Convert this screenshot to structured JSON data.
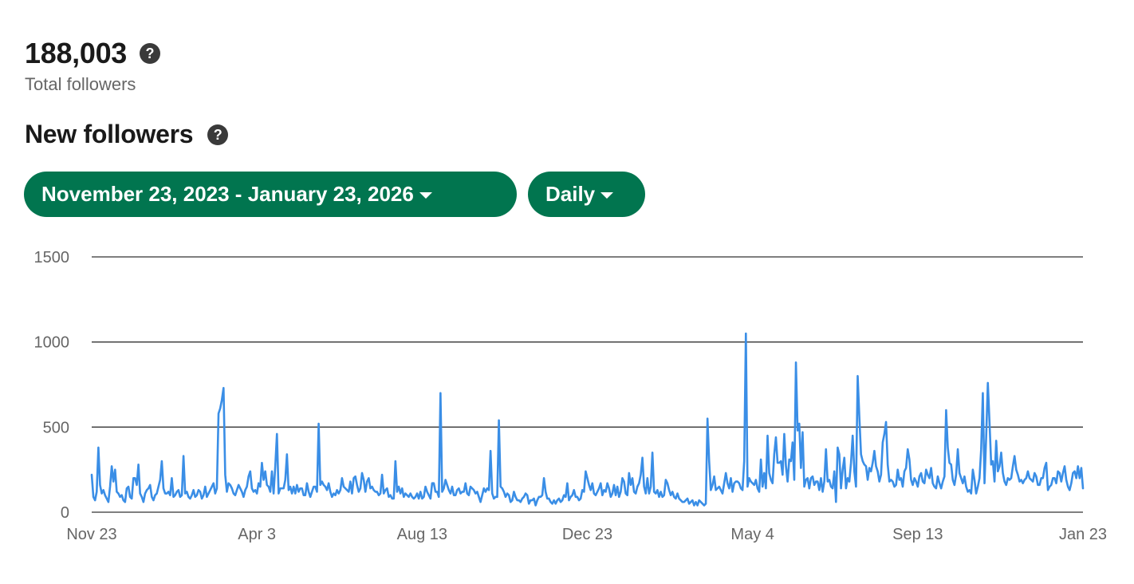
{
  "summary": {
    "total_followers_value": "188,003",
    "total_followers_label": "Total followers",
    "section_title": "New followers",
    "help_glyph": "?"
  },
  "filters": {
    "date_range_label": "November 23, 2023 - January 23, 2026",
    "interval_label": "Daily"
  },
  "icons": {
    "help": "question-circle-icon",
    "dropdown": "caret-down-icon"
  },
  "colors": {
    "pill_bg": "#01754f",
    "line": "#3a8ee6",
    "gridline": "#333333"
  },
  "chart_data": {
    "type": "line",
    "title": "",
    "xlabel": "",
    "ylabel": "",
    "x_range": [
      "2023-11-23",
      "2026-01-23"
    ],
    "xticks": [
      "Nov 23",
      "Apr 3",
      "Aug 13",
      "Dec 23",
      "May 4",
      "Sep 13",
      "Jan 23"
    ],
    "yticks": [
      0,
      500,
      1000,
      1500
    ],
    "ylim": [
      0,
      1500
    ],
    "grid": true,
    "series": [
      {
        "name": "",
        "values": [
          220,
          90,
          70,
          120,
          380,
          160,
          110,
          130,
          100,
          80,
          60,
          150,
          270,
          180,
          250,
          120,
          110,
          90,
          100,
          70,
          60,
          140,
          150,
          90,
          80,
          200,
          200,
          160,
          280,
          110,
          90,
          60,
          110,
          130,
          140,
          160,
          90,
          70,
          100,
          110,
          150,
          190,
          300,
          140,
          110,
          110,
          120,
          100,
          200,
          90,
          100,
          120,
          130,
          90,
          100,
          330,
          110,
          120,
          90,
          80,
          100,
          130,
          90,
          100,
          130,
          120,
          80,
          100,
          150,
          90,
          110,
          130,
          150,
          170,
          110,
          140,
          580,
          610,
          660,
          730,
          220,
          120,
          170,
          160,
          140,
          110,
          100,
          130,
          160,
          140,
          120,
          90,
          130,
          150,
          210,
          240,
          140,
          120,
          130,
          110,
          170,
          150,
          290,
          190,
          240,
          160,
          150,
          120,
          240,
          110,
          270,
          460,
          110,
          140,
          140,
          140,
          190,
          340,
          130,
          150,
          110,
          150,
          110,
          160,
          120,
          140,
          140,
          100,
          100,
          170,
          120,
          90,
          120,
          150,
          150,
          120,
          520,
          160,
          180,
          160,
          150,
          130,
          170,
          120,
          90,
          110,
          100,
          130,
          110,
          130,
          200,
          150,
          140,
          130,
          120,
          180,
          110,
          200,
          210,
          160,
          120,
          140,
          230,
          190,
          120,
          180,
          200,
          140,
          150,
          130,
          120,
          120,
          100,
          110,
          220,
          110,
          130,
          140,
          90,
          100,
          80,
          80,
          300,
          120,
          150,
          110,
          140,
          90,
          110,
          100,
          90,
          110,
          90,
          80,
          90,
          110,
          80,
          120,
          80,
          90,
          150,
          120,
          100,
          80,
          170,
          170,
          120,
          120,
          90,
          700,
          120,
          140,
          190,
          160,
          130,
          110,
          150,
          100,
          100,
          130,
          140,
          110,
          120,
          120,
          170,
          110,
          100,
          150,
          140,
          130,
          110,
          120,
          90,
          60,
          100,
          140,
          120,
          140,
          130,
          360,
          110,
          80,
          90,
          90,
          540,
          150,
          140,
          120,
          90,
          110,
          100,
          60,
          70,
          120,
          90,
          70,
          70,
          60,
          80,
          90,
          110,
          100,
          50,
          70,
          70,
          80,
          40,
          70,
          90,
          90,
          100,
          200,
          120,
          80,
          80,
          60,
          50,
          70,
          50,
          70,
          80,
          60,
          70,
          100,
          90,
          170,
          70,
          90,
          100,
          130,
          90,
          90,
          70,
          80,
          130,
          120,
          240,
          200,
          160,
          130,
          170,
          110,
          100,
          120,
          140,
          170,
          100,
          130,
          120,
          170,
          140,
          90,
          110,
          160,
          100,
          150,
          90,
          120,
          200,
          180,
          110,
          100,
          230,
          160,
          200,
          120,
          110,
          150,
          170,
          220,
          320,
          150,
          110,
          200,
          110,
          150,
          350,
          120,
          110,
          130,
          90,
          120,
          90,
          100,
          190,
          170,
          130,
          100,
          120,
          90,
          80,
          110,
          80,
          70,
          60,
          60,
          70,
          80,
          50,
          60,
          70,
          40,
          60,
          40,
          70,
          60,
          50,
          40,
          50,
          550,
          300,
          130,
          160,
          210,
          130,
          140,
          150,
          130,
          110,
          170,
          230,
          170,
          140,
          200,
          120,
          170,
          180,
          180,
          170,
          140,
          130,
          300,
          1050,
          150,
          200,
          180,
          170,
          160,
          190,
          140,
          120,
          310,
          150,
          230,
          140,
          450,
          230,
          190,
          170,
          340,
          440,
          290,
          290,
          300,
          220,
          460,
          270,
          180,
          310,
          300,
          410,
          190,
          880,
          480,
          520,
          260,
          470,
          150,
          190,
          200,
          140,
          200,
          210,
          160,
          180,
          180,
          130,
          200,
          120,
          180,
          370,
          180,
          190,
          150,
          140,
          240,
          60,
          380,
          340,
          140,
          250,
          320,
          140,
          200,
          180,
          290,
          450,
          240,
          150,
          800,
          560,
          340,
          300,
          280,
          270,
          190,
          260,
          240,
          290,
          360,
          270,
          240,
          180,
          220,
          410,
          460,
          530,
          280,
          180,
          190,
          180,
          150,
          160,
          250,
          190,
          200,
          150,
          240,
          260,
          370,
          310,
          190,
          160,
          200,
          180,
          150,
          210,
          230,
          180,
          170,
          250,
          220,
          200,
          260,
          170,
          150,
          140,
          210,
          170,
          140,
          180,
          210,
          600,
          380,
          290,
          280,
          190,
          160,
          220,
          370,
          230,
          200,
          170,
          210,
          150,
          120,
          130,
          110,
          250,
          190,
          110,
          150,
          200,
          370,
          700,
          170,
          440,
          760,
          530,
          280,
          300,
          180,
          420,
          240,
          270,
          350,
          230,
          180,
          160,
          200,
          190,
          200,
          270,
          330,
          250,
          220,
          180,
          190,
          170,
          190,
          200,
          240,
          200,
          190,
          180,
          230,
          210,
          160,
          160,
          200,
          200,
          260,
          290,
          130,
          150,
          160,
          200,
          200,
          170,
          240,
          230,
          180,
          230,
          270,
          190,
          150,
          130,
          170,
          230,
          240,
          200,
          270,
          200,
          260,
          140
        ]
      }
    ]
  }
}
